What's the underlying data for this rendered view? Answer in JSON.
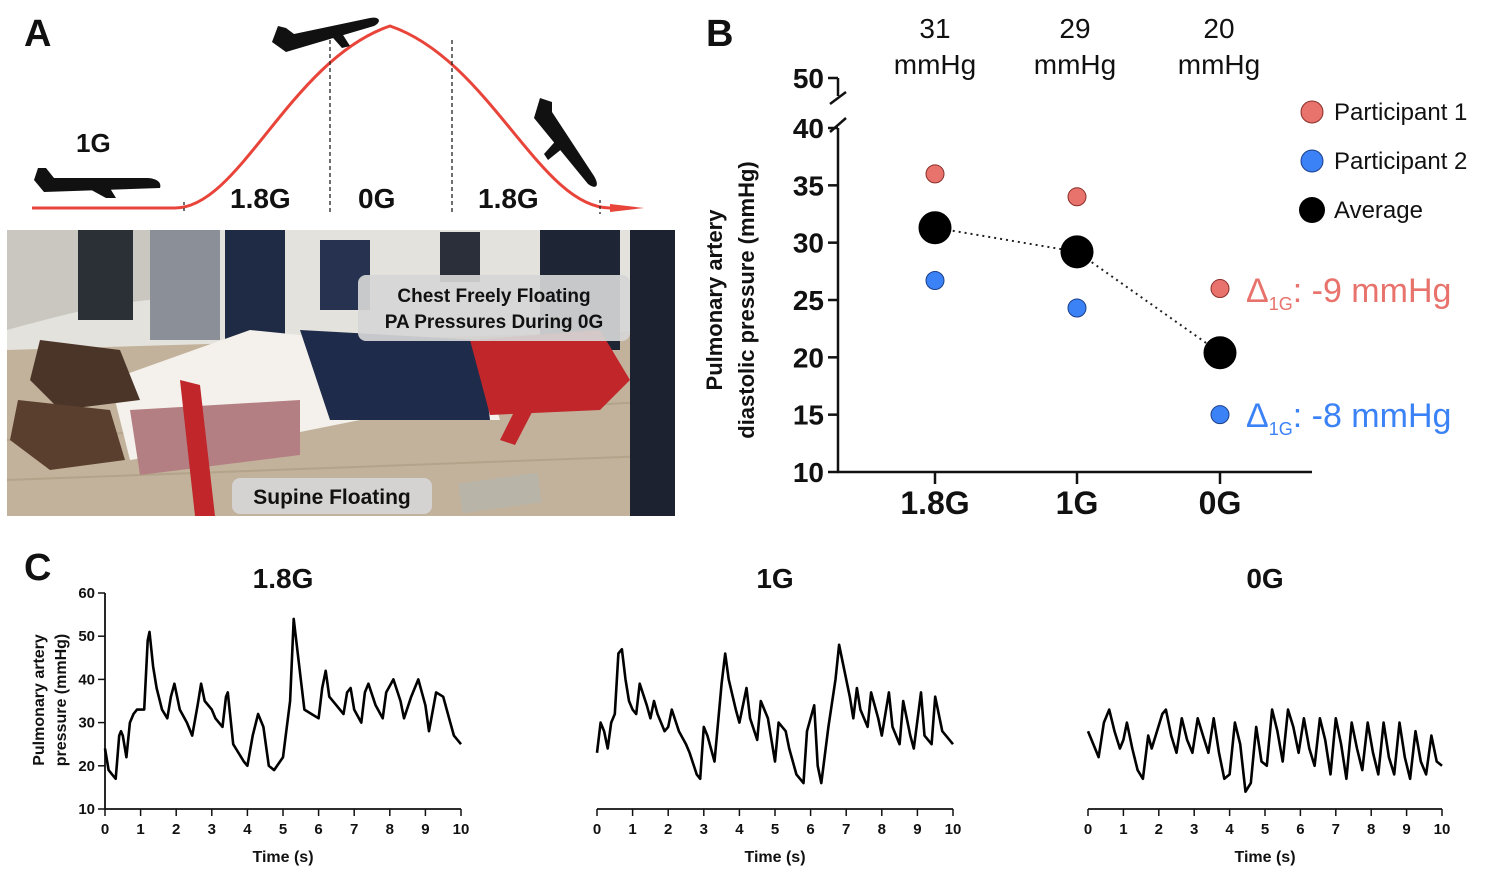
{
  "panels": {
    "a": {
      "letter": "A",
      "profile_labels": {
        "start": "1G",
        "pull_up": "1.8G",
        "zero": "0G",
        "pull_out": "1.8G"
      },
      "photo_labels": {
        "chest_line1": "Chest Freely Floating",
        "chest_line2": "PA Pressures During 0G",
        "supine": "Supine Floating"
      }
    },
    "b": {
      "letter": "B"
    },
    "c": {
      "letter": "C"
    }
  },
  "colors": {
    "participant1": "#e8726c",
    "participant2": "#3b82f6",
    "average": "#000000",
    "curve": "#e8443a"
  },
  "chart_data": [
    {
      "type": "scatter",
      "title": "",
      "ylabel_line1": "Pulmonary artery",
      "ylabel_line2": "diastolic pressure (mmHg)",
      "categories": [
        "1.8G",
        "1G",
        "0G"
      ],
      "header_values": [
        "31",
        "29",
        "20"
      ],
      "header_unit": "mmHg",
      "yticks": [
        "10",
        "15",
        "20",
        "25",
        "30",
        "35",
        "40"
      ],
      "ybreak_tick": "50",
      "ylim": [
        10,
        40
      ],
      "series": [
        {
          "name": "Participant 1",
          "values": [
            36,
            34,
            26
          ]
        },
        {
          "name": "Participant 2",
          "values": [
            26.7,
            24.3,
            15
          ]
        },
        {
          "name": "Average",
          "values": [
            31.3,
            29.2,
            20.4
          ]
        }
      ],
      "annotations": [
        {
          "delta": "Δ",
          "sub": "1G",
          "text": ": -9 mmHg"
        },
        {
          "delta": "Δ",
          "sub": "1G",
          "text": ": -8 mmHg"
        }
      ]
    },
    {
      "type": "line",
      "title": "1.8G",
      "xlabel": "Time (s)",
      "ylabel_line1": "Pulmonary artery",
      "ylabel_line2": "pressure (mmHg)",
      "xticks": [
        "0",
        "1",
        "2",
        "3",
        "4",
        "5",
        "6",
        "7",
        "8",
        "9",
        "10"
      ],
      "yticks": [
        "10",
        "20",
        "30",
        "40",
        "50",
        "60"
      ],
      "xlim": [
        0,
        10
      ],
      "ylim": [
        10,
        60
      ],
      "x": [
        0,
        0.1,
        0.2,
        0.3,
        0.4,
        0.45,
        0.5,
        0.6,
        0.7,
        0.8,
        0.9,
        1.0,
        1.1,
        1.2,
        1.25,
        1.35,
        1.45,
        1.6,
        1.75,
        1.85,
        1.95,
        2.1,
        2.3,
        2.45,
        2.6,
        2.7,
        2.8,
        3.0,
        3.1,
        3.3,
        3.4,
        3.45,
        3.6,
        3.9,
        4.0,
        4.15,
        4.3,
        4.45,
        4.6,
        4.75,
        5.0,
        5.2,
        5.3,
        5.5,
        5.6,
        5.8,
        6.0,
        6.1,
        6.2,
        6.3,
        6.5,
        6.7,
        6.8,
        6.9,
        7.0,
        7.2,
        7.3,
        7.4,
        7.6,
        7.8,
        7.9,
        8.1,
        8.3,
        8.4,
        8.6,
        8.8,
        9.0,
        9.1,
        9.3,
        9.5,
        9.7,
        9.8,
        10.0
      ],
      "y": [
        24,
        19,
        18,
        17,
        27,
        28,
        27,
        22,
        30,
        32,
        33,
        33,
        33,
        49,
        51,
        43,
        38,
        33,
        31,
        36,
        39,
        33,
        30,
        27,
        34,
        39,
        35,
        33,
        31,
        29,
        36,
        37,
        25,
        21,
        20,
        27,
        32,
        29,
        20,
        19,
        22,
        35,
        54,
        40,
        33,
        32,
        31,
        38,
        42,
        36,
        34,
        32,
        37,
        38,
        33,
        30,
        37,
        39,
        34,
        31,
        37,
        40,
        35,
        31,
        36,
        40,
        34,
        28,
        37,
        36,
        30,
        27,
        25
      ]
    },
    {
      "type": "line",
      "title": "1G",
      "xlabel": "Time (s)",
      "xticks": [
        "0",
        "1",
        "2",
        "3",
        "4",
        "5",
        "6",
        "7",
        "8",
        "9",
        "10"
      ],
      "xlim": [
        0,
        10
      ],
      "ylim": [
        10,
        60
      ],
      "x": [
        0,
        0.1,
        0.2,
        0.3,
        0.4,
        0.5,
        0.6,
        0.7,
        0.8,
        0.9,
        1.0,
        1.1,
        1.2,
        1.4,
        1.5,
        1.6,
        1.7,
        1.9,
        2.0,
        2.1,
        2.3,
        2.5,
        2.6,
        2.8,
        2.9,
        3.0,
        3.1,
        3.3,
        3.5,
        3.6,
        3.7,
        3.9,
        4.0,
        4.2,
        4.3,
        4.5,
        4.6,
        4.8,
        5.0,
        5.1,
        5.3,
        5.4,
        5.6,
        5.8,
        5.9,
        6.1,
        6.2,
        6.3,
        6.5,
        6.7,
        6.8,
        7.1,
        7.2,
        7.3,
        7.4,
        7.6,
        7.7,
        7.9,
        8.0,
        8.2,
        8.3,
        8.5,
        8.6,
        8.8,
        8.9,
        9.1,
        9.2,
        9.4,
        9.5,
        9.7,
        9.8,
        10.0
      ],
      "y": [
        23,
        30,
        28,
        24,
        30,
        32,
        46,
        47,
        40,
        35,
        33,
        32,
        39,
        34,
        31,
        35,
        32,
        28,
        29,
        33,
        28,
        25,
        23,
        18,
        17,
        29,
        27,
        21,
        39,
        46,
        40,
        33,
        30,
        38,
        31,
        26,
        35,
        31,
        21,
        30,
        28,
        24,
        18,
        16,
        28,
        34,
        20,
        16,
        29,
        40,
        48,
        36,
        31,
        38,
        33,
        29,
        37,
        31,
        27,
        37,
        29,
        25,
        35,
        27,
        24,
        37,
        27,
        25,
        36,
        28,
        27,
        25
      ]
    },
    {
      "type": "line",
      "title": "0G",
      "xlabel": "Time (s)",
      "xticks": [
        "0",
        "1",
        "2",
        "3",
        "4",
        "5",
        "6",
        "7",
        "8",
        "9",
        "10"
      ],
      "xlim": [
        0,
        10
      ],
      "ylim": [
        10,
        60
      ],
      "x": [
        0,
        0.2,
        0.3,
        0.45,
        0.6,
        0.75,
        0.9,
        1.0,
        1.1,
        1.25,
        1.4,
        1.55,
        1.7,
        1.8,
        1.95,
        2.1,
        2.2,
        2.35,
        2.5,
        2.65,
        2.8,
        2.95,
        3.1,
        3.25,
        3.4,
        3.55,
        3.7,
        3.85,
        4.0,
        4.15,
        4.3,
        4.45,
        4.6,
        4.75,
        4.9,
        5.05,
        5.2,
        5.35,
        5.5,
        5.65,
        5.8,
        5.95,
        6.1,
        6.25,
        6.4,
        6.55,
        6.7,
        6.85,
        7.0,
        7.15,
        7.3,
        7.45,
        7.6,
        7.75,
        7.9,
        8.05,
        8.2,
        8.35,
        8.5,
        8.65,
        8.8,
        8.95,
        9.1,
        9.25,
        9.4,
        9.55,
        9.7,
        9.85,
        10.0
      ],
      "y": [
        28,
        24,
        22,
        30,
        33,
        28,
        24,
        26,
        30,
        24,
        19,
        17,
        27,
        24,
        28,
        32,
        33,
        27,
        23,
        31,
        26,
        23,
        31,
        27,
        23,
        31,
        23,
        17,
        18,
        30,
        25,
        14,
        16,
        29,
        21,
        20,
        33,
        28,
        21,
        33,
        29,
        23,
        31,
        24,
        20,
        31,
        26,
        18,
        31,
        25,
        17,
        30,
        24,
        19,
        30,
        23,
        18,
        30,
        22,
        18,
        30,
        22,
        17,
        28,
        21,
        18,
        27,
        21,
        20
      ]
    }
  ]
}
